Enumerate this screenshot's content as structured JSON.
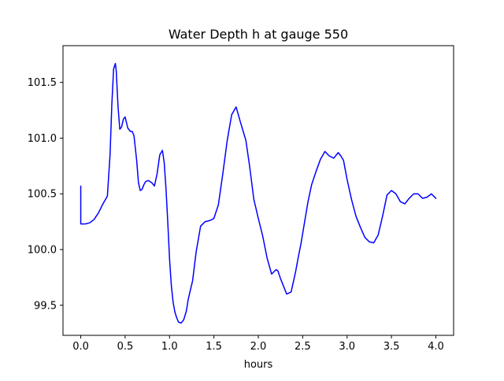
{
  "chart_data": {
    "type": "line",
    "title": "Water Depth h at gauge 550",
    "xlabel": "hours",
    "ylabel": "",
    "xlim": [
      -0.2,
      4.2
    ],
    "ylim": [
      99.23,
      101.83
    ],
    "xticks": [
      0.0,
      0.5,
      1.0,
      1.5,
      2.0,
      2.5,
      3.0,
      3.5,
      4.0
    ],
    "xtick_labels": [
      "0.0",
      "0.5",
      "1.0",
      "1.5",
      "2.0",
      "2.5",
      "3.0",
      "3.5",
      "4.0"
    ],
    "yticks": [
      99.5,
      100.0,
      100.5,
      101.0,
      101.5
    ],
    "ytick_labels": [
      "99.5",
      "100.0",
      "100.5",
      "101.0",
      "101.5"
    ],
    "grid": false,
    "series": [
      {
        "color": "#0000ff",
        "x": [
          0.0,
          0.0,
          0.05,
          0.1,
          0.15,
          0.2,
          0.25,
          0.3,
          0.33,
          0.35,
          0.37,
          0.39,
          0.4,
          0.42,
          0.44,
          0.46,
          0.48,
          0.5,
          0.53,
          0.56,
          0.58,
          0.6,
          0.63,
          0.65,
          0.67,
          0.69,
          0.71,
          0.73,
          0.76,
          0.8,
          0.83,
          0.86,
          0.89,
          0.92,
          0.94,
          0.96,
          0.98,
          1.0,
          1.02,
          1.04,
          1.06,
          1.08,
          1.1,
          1.13,
          1.16,
          1.19,
          1.21,
          1.23,
          1.26,
          1.3,
          1.35,
          1.4,
          1.45,
          1.48,
          1.5,
          1.55,
          1.6,
          1.65,
          1.7,
          1.75,
          1.8,
          1.83,
          1.86,
          1.9,
          1.95,
          2.0,
          2.05,
          2.1,
          2.15,
          2.2,
          2.22,
          2.25,
          2.28,
          2.32,
          2.37,
          2.42,
          2.45,
          2.48,
          2.52,
          2.56,
          2.6,
          2.65,
          2.7,
          2.75,
          2.8,
          2.85,
          2.9,
          2.93,
          2.96,
          3.0,
          3.05,
          3.1,
          3.15,
          3.2,
          3.25,
          3.3,
          3.35,
          3.4,
          3.45,
          3.5,
          3.55,
          3.6,
          3.65,
          3.7,
          3.75,
          3.8,
          3.85,
          3.9,
          3.95,
          4.0
        ],
        "y": [
          100.57,
          100.23,
          100.23,
          100.24,
          100.27,
          100.33,
          100.41,
          100.48,
          100.85,
          101.3,
          101.62,
          101.67,
          101.6,
          101.28,
          101.08,
          101.1,
          101.17,
          101.19,
          101.09,
          101.06,
          101.06,
          101.02,
          100.8,
          100.6,
          100.53,
          100.54,
          100.58,
          100.61,
          100.62,
          100.6,
          100.57,
          100.68,
          100.85,
          100.89,
          100.78,
          100.55,
          100.25,
          99.92,
          99.68,
          99.53,
          99.44,
          99.39,
          99.35,
          99.34,
          99.37,
          99.45,
          99.55,
          99.62,
          99.72,
          99.98,
          100.21,
          100.25,
          100.26,
          100.27,
          100.28,
          100.4,
          100.68,
          100.98,
          101.21,
          101.28,
          101.14,
          101.06,
          100.98,
          100.76,
          100.45,
          100.28,
          100.12,
          99.92,
          99.78,
          99.82,
          99.81,
          99.74,
          99.68,
          99.6,
          99.62,
          99.8,
          99.93,
          100.05,
          100.24,
          100.43,
          100.58,
          100.7,
          100.81,
          100.88,
          100.84,
          100.82,
          100.87,
          100.84,
          100.8,
          100.63,
          100.45,
          100.3,
          100.2,
          100.11,
          100.07,
          100.06,
          100.13,
          100.3,
          100.49,
          100.53,
          100.5,
          100.43,
          100.41,
          100.46,
          100.5,
          100.5,
          100.46,
          100.47,
          100.5,
          100.46
        ]
      }
    ]
  }
}
